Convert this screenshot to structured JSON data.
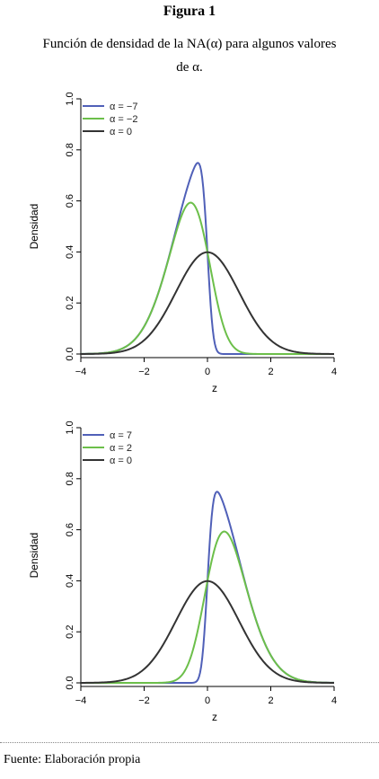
{
  "figure_label": "Figura 1",
  "caption_line1": "Función de densidad de la NA(α) para algunos valores",
  "caption_line2": "de α.",
  "source": "Fuente: Elaboración propia",
  "chart_data": [
    {
      "type": "line",
      "xlabel": "z",
      "ylabel": "Densidad",
      "xlim": [
        -4,
        4
      ],
      "ylim": [
        0,
        1.0
      ],
      "xticks": [
        "-4",
        "-2",
        "0",
        "2",
        "4"
      ],
      "yticks": [
        "0.0",
        "0.2",
        "0.4",
        "0.6",
        "0.8",
        "1.0"
      ],
      "legend_position": "top-left",
      "series": [
        {
          "name": "α = −7",
          "alpha": -7,
          "color": "#5060b8"
        },
        {
          "name": "α = −2",
          "alpha": -2,
          "color": "#6cbf4a"
        },
        {
          "name": "α = 0",
          "alpha": 0,
          "color": "#333333"
        }
      ]
    },
    {
      "type": "line",
      "xlabel": "z",
      "ylabel": "Densidad",
      "xlim": [
        -4,
        4
      ],
      "ylim": [
        0,
        1.0
      ],
      "xticks": [
        "-4",
        "-2",
        "0",
        "2",
        "4"
      ],
      "yticks": [
        "0.0",
        "0.2",
        "0.4",
        "0.6",
        "0.8",
        "1.0"
      ],
      "legend_position": "top-left",
      "series": [
        {
          "name": "α = 7",
          "alpha": 7,
          "color": "#5060b8"
        },
        {
          "name": "α = 2",
          "alpha": 2,
          "color": "#6cbf4a"
        },
        {
          "name": "α = 0",
          "alpha": 0,
          "color": "#333333"
        }
      ]
    }
  ]
}
